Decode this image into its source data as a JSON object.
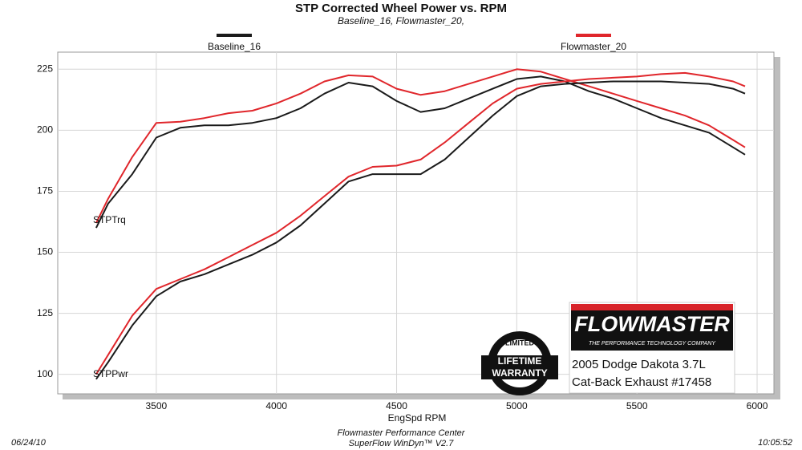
{
  "chart_data": {
    "type": "line",
    "title": "STP Corrected Wheel Power vs. RPM",
    "subtitle": "Baseline_16, Flowmaster_20,",
    "xlabel": "EngSpd  RPM",
    "x": [
      3250,
      3300,
      3400,
      3500,
      3600,
      3700,
      3800,
      3900,
      4000,
      4100,
      4200,
      4300,
      4400,
      4500,
      4600,
      4700,
      4800,
      4900,
      5000,
      5100,
      5200,
      5300,
      5400,
      5500,
      5600,
      5700,
      5800,
      5900,
      5950
    ],
    "series": [
      {
        "name": "Baseline_16",
        "color": "#1a1a1a",
        "values": [
          160,
          170,
          182,
          197,
          201,
          202,
          202,
          203,
          205,
          209,
          215,
          219.5,
          218,
          212,
          207.5,
          209,
          213,
          217,
          221,
          222,
          220,
          216,
          213,
          209,
          205,
          202,
          199,
          193,
          190
        ]
      },
      {
        "name": "Flowmaster_20",
        "color": "#e0262b",
        "values": [
          162,
          172,
          189,
          203,
          203.5,
          205,
          207,
          208,
          211,
          215,
          220,
          222.5,
          222,
          217,
          214.5,
          216,
          219,
          222,
          225,
          224,
          221,
          218,
          215,
          212,
          209,
          206,
          202,
          196,
          193
        ]
      },
      {
        "name": "Baseline_16",
        "color": "#1a1a1a",
        "values": [
          98,
          105,
          120,
          132,
          138,
          141,
          145,
          149,
          154,
          161,
          170,
          179,
          182,
          182,
          182,
          188,
          197,
          206,
          214,
          218,
          219,
          219.5,
          220,
          220,
          220,
          219.5,
          219,
          217,
          215
        ]
      },
      {
        "name": "Flowmaster_20",
        "color": "#e0262b",
        "values": [
          100,
          108,
          124,
          135,
          139,
          143,
          148,
          153,
          158,
          165,
          173,
          181,
          185,
          185.5,
          188,
          195,
          203,
          211,
          217,
          219,
          220,
          221,
          221.5,
          222,
          223,
          223.5,
          222,
          220,
          218
        ]
      }
    ],
    "legend_series": [
      0,
      1
    ],
    "xlim": [
      3090,
      6070
    ],
    "xticks": [
      3500,
      4000,
      4500,
      5000,
      5500,
      6000
    ],
    "ylim": [
      92,
      232
    ],
    "yticks": [
      100,
      125,
      150,
      175,
      200,
      225
    ],
    "grid": true,
    "annotations": [
      {
        "text": "STPTrq",
        "x": 3250,
        "y": 163
      },
      {
        "text": "STPPwr",
        "x": 3250,
        "y": 100
      }
    ],
    "footer": {
      "date": "06/24/10",
      "center": "Flowmaster Performance Center",
      "software": "SuperFlow WinDyn™ V2.7",
      "time": "10:05:52"
    },
    "logo": {
      "brand": "FLOWMASTER",
      "tagline": "THE PERFORMANCE TECHNOLOGY COMPANY",
      "vehicle": "2005 Dodge Dakota 3.7L",
      "product": "Cat-Back Exhaust #17458"
    },
    "badge": {
      "top": "LIMITED",
      "line1": "LIFETIME",
      "line2": "WARRANTY"
    }
  }
}
